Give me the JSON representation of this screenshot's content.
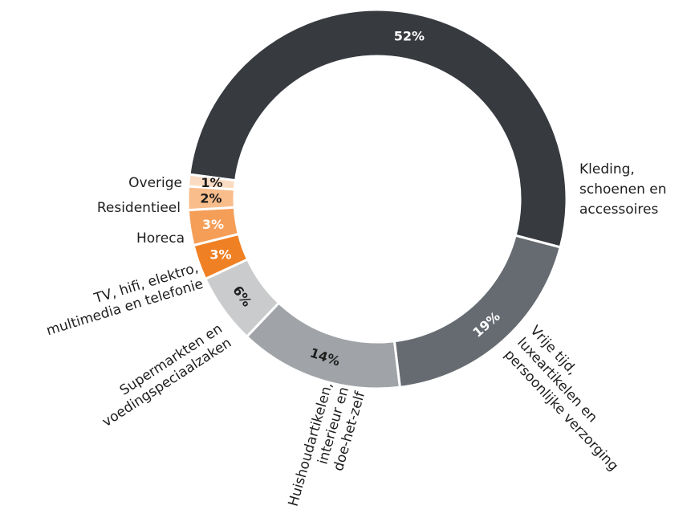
{
  "chart_data": {
    "type": "pie",
    "variant": "donut",
    "slices": [
      {
        "value": 52,
        "pct_label": "52%",
        "label_lines": [
          "Kleding,",
          "schoenen en",
          "accessoires"
        ],
        "color": "#373a3f",
        "text_color": "#ffffff"
      },
      {
        "value": 19,
        "pct_label": "19%",
        "label_lines": [
          "Vrije tijd,",
          "luxeartikelen en",
          "persoonlijke verzorging"
        ],
        "color": "#656b71",
        "text_color": "#ffffff"
      },
      {
        "value": 14,
        "pct_label": "14%",
        "label_lines": [
          "Huishoudartikelen,",
          "interieur en",
          "doe-het-zelf"
        ],
        "color": "#a0a4a8",
        "text_color": "#1e1e1e"
      },
      {
        "value": 6,
        "pct_label": "6%",
        "label_lines": [
          "Supermarkten en",
          "voedingspeciaalzaken"
        ],
        "color": "#c9cbcd",
        "text_color": "#1e1e1e"
      },
      {
        "value": 3,
        "pct_label": "3%",
        "label_lines": [
          "TV, hifi, elektro,",
          "multimedia en telefonie"
        ],
        "color": "#f08024",
        "text_color": "#ffffff"
      },
      {
        "value": 3,
        "pct_label": "3%",
        "label_lines": [
          "Horeca"
        ],
        "color": "#f59e58",
        "text_color": "#ffffff"
      },
      {
        "value": 2,
        "pct_label": "2%",
        "label_lines": [
          "Residentieel"
        ],
        "color": "#f9bd8c",
        "text_color": "#1e1e1e"
      },
      {
        "value": 1,
        "pct_label": "1%",
        "label_lines": [
          "Overige"
        ],
        "color": "#fbdcc2",
        "text_color": "#1e1e1e"
      }
    ]
  }
}
